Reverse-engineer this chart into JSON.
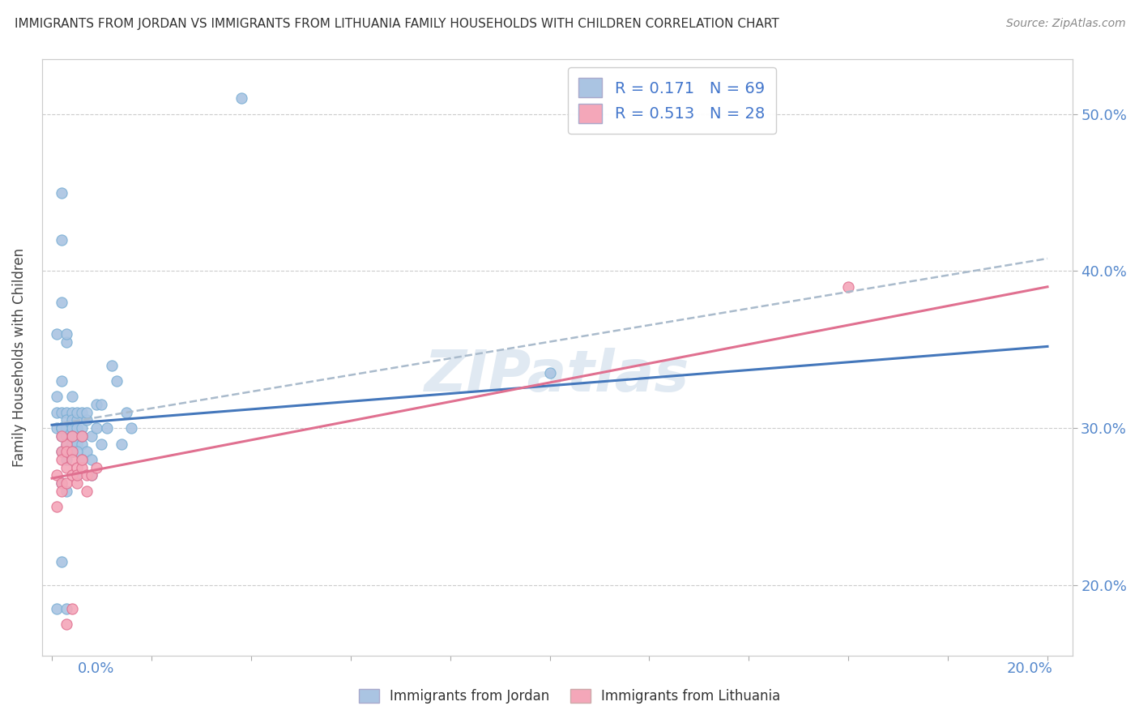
{
  "title": "IMMIGRANTS FROM JORDAN VS IMMIGRANTS FROM LITHUANIA FAMILY HOUSEHOLDS WITH CHILDREN CORRELATION CHART",
  "source": "Source: ZipAtlas.com",
  "ylabel": "Family Households with Children",
  "ytick_labels": [
    "20.0%",
    "30.0%",
    "40.0%",
    "50.0%"
  ],
  "ytick_values": [
    0.2,
    0.3,
    0.4,
    0.5
  ],
  "xlim": [
    -0.002,
    0.205
  ],
  "ylim": [
    0.155,
    0.535
  ],
  "jordan_color": "#aac4e2",
  "jordan_edge": "#7aafd4",
  "lithuania_color": "#f4a7b9",
  "lithuania_edge": "#e07090",
  "jordan_R": 0.171,
  "jordan_N": 69,
  "lithuania_R": 0.513,
  "lithuania_N": 28,
  "jordan_line_color": "#4477bb",
  "lithuania_line_color": "#e07090",
  "dash_line_color": "#aabbcc",
  "watermark": "ZIPatlas",
  "jordan_line_y0": 0.302,
  "jordan_line_y1": 0.352,
  "dash_line_y0": 0.302,
  "dash_line_y1": 0.408,
  "lithuania_line_y0": 0.268,
  "lithuania_line_y1": 0.39,
  "jordan_scatter_x": [
    0.001,
    0.001,
    0.001,
    0.001,
    0.002,
    0.002,
    0.002,
    0.002,
    0.002,
    0.002,
    0.002,
    0.002,
    0.002,
    0.003,
    0.003,
    0.003,
    0.003,
    0.003,
    0.003,
    0.003,
    0.003,
    0.003,
    0.004,
    0.004,
    0.004,
    0.004,
    0.004,
    0.004,
    0.004,
    0.005,
    0.005,
    0.005,
    0.005,
    0.005,
    0.006,
    0.006,
    0.006,
    0.006,
    0.007,
    0.007,
    0.007,
    0.008,
    0.008,
    0.008,
    0.009,
    0.009,
    0.01,
    0.01,
    0.011,
    0.012,
    0.013,
    0.014,
    0.015,
    0.016,
    0.002,
    0.002,
    0.003,
    0.003,
    0.004,
    0.004,
    0.005,
    0.005,
    0.006,
    0.006,
    0.038,
    0.001,
    0.002,
    0.1,
    0.003
  ],
  "jordan_scatter_y": [
    0.31,
    0.36,
    0.32,
    0.3,
    0.42,
    0.45,
    0.38,
    0.33,
    0.3,
    0.285,
    0.295,
    0.31,
    0.3,
    0.355,
    0.36,
    0.3,
    0.295,
    0.31,
    0.3,
    0.29,
    0.28,
    0.305,
    0.3,
    0.295,
    0.31,
    0.305,
    0.285,
    0.32,
    0.29,
    0.305,
    0.295,
    0.29,
    0.31,
    0.3,
    0.3,
    0.31,
    0.295,
    0.29,
    0.305,
    0.285,
    0.31,
    0.295,
    0.28,
    0.27,
    0.3,
    0.315,
    0.29,
    0.315,
    0.3,
    0.34,
    0.33,
    0.29,
    0.31,
    0.3,
    0.265,
    0.215,
    0.285,
    0.26,
    0.285,
    0.295,
    0.285,
    0.27,
    0.28,
    0.295,
    0.51,
    0.185,
    0.3,
    0.335,
    0.185
  ],
  "lithuania_scatter_x": [
    0.001,
    0.001,
    0.002,
    0.002,
    0.002,
    0.002,
    0.003,
    0.003,
    0.003,
    0.003,
    0.004,
    0.004,
    0.004,
    0.004,
    0.005,
    0.005,
    0.005,
    0.006,
    0.006,
    0.006,
    0.007,
    0.007,
    0.008,
    0.009,
    0.003,
    0.004,
    0.16,
    0.002
  ],
  "lithuania_scatter_y": [
    0.27,
    0.25,
    0.285,
    0.265,
    0.28,
    0.26,
    0.29,
    0.275,
    0.285,
    0.265,
    0.285,
    0.27,
    0.28,
    0.295,
    0.275,
    0.265,
    0.27,
    0.295,
    0.275,
    0.28,
    0.27,
    0.26,
    0.27,
    0.275,
    0.175,
    0.185,
    0.39,
    0.295
  ]
}
